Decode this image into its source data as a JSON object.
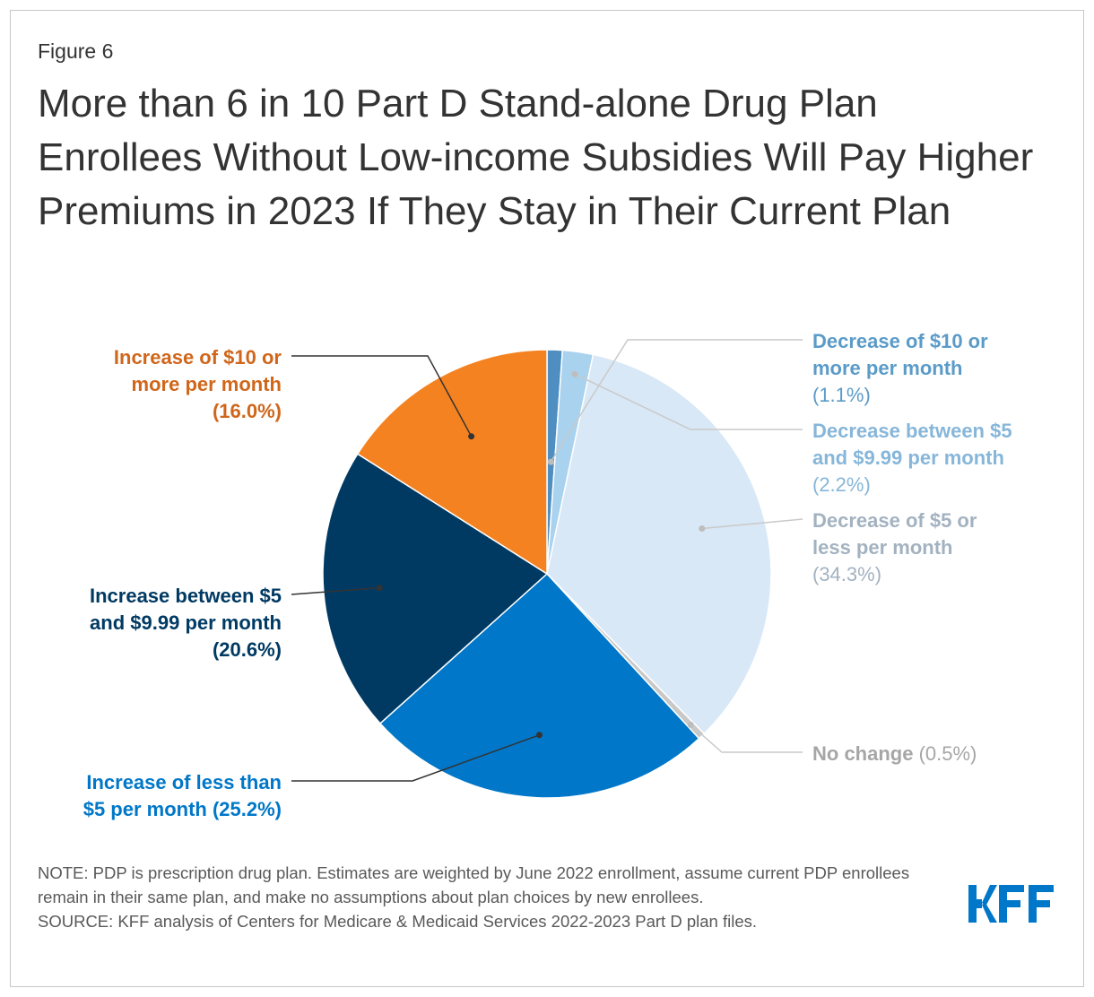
{
  "figure_label": "Figure 6",
  "title": "More than 6 in 10 Part D Stand-alone Drug Plan Enrollees Without Low-income Subsidies Will Pay Higher Premiums in 2023 If They Stay in Their Current Plan",
  "note": "NOTE: PDP is prescription drug plan. Estimates are weighted by June 2022 enrollment, assume current PDP enrollees remain in their same plan, and make no assumptions about plan choices by new enrollees.",
  "source": "SOURCE: KFF analysis of Centers for Medicare & Medicaid Services 2022-2023 Part D plan files.",
  "logo": {
    "text": "KFF",
    "color": "#0077c8"
  },
  "chart_data": {
    "type": "pie",
    "start": "12 o'clock, clockwise",
    "slices": [
      {
        "label": "Decrease of $10 or more per month",
        "value": 1.1,
        "value_label": "(1.1%)",
        "color": "#4e8ec1",
        "label_color": "#5b9bc8",
        "label_bold_value": false
      },
      {
        "label": "Decrease between $5 and $9.99 per month",
        "value": 2.2,
        "value_label": "(2.2%)",
        "color": "#a9d2ee",
        "label_color": "#86b6d9",
        "label_bold_value": false
      },
      {
        "label": "Decrease of $5 or less per month",
        "value": 34.3,
        "value_label": "(34.3%)",
        "color": "#d8e8f6",
        "label_color": "#a3b2c0",
        "label_bold_value": false
      },
      {
        "label": "No change",
        "value": 0.5,
        "value_label": "(0.5%)",
        "color": "#c8c8c8",
        "label_color": "#a6a6a6",
        "label_bold_value": false
      },
      {
        "label": "Increase of less than $5 per month",
        "value": 25.2,
        "value_label": "(25.2%)",
        "color": "#0077c8",
        "label_color": "#0077c8",
        "label_bold_value": true
      },
      {
        "label": "Increase between $5 and $9.99 per month",
        "value": 20.6,
        "value_label": "(20.6%)",
        "color": "#003a63",
        "label_color": "#003a63",
        "label_bold_value": true
      },
      {
        "label": "Increase of $10 or more per month",
        "value": 16.0,
        "value_label": "(16.0%)",
        "color": "#f58220",
        "label_color": "#d0661a",
        "label_bold_value": true
      }
    ],
    "legend": "callout labels"
  }
}
